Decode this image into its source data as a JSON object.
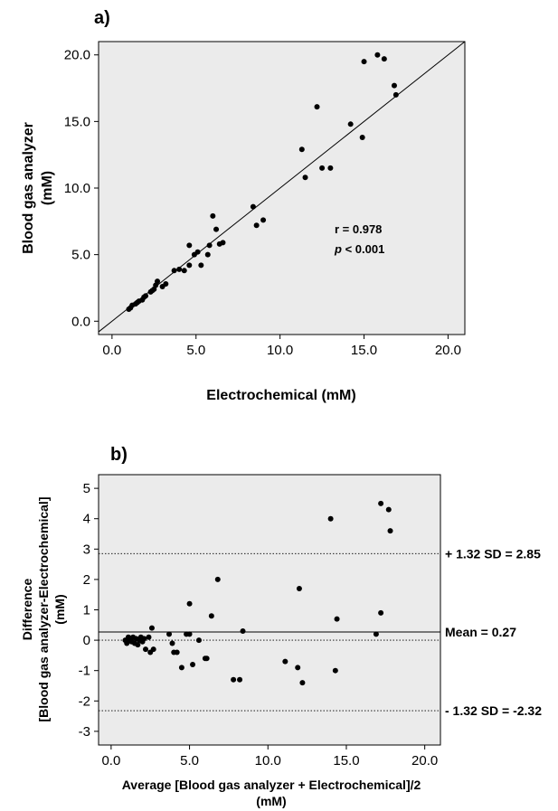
{
  "chart_data": [
    {
      "type": "scatter",
      "panel_label": "a)",
      "xlabel": "Electrochemical (mM)",
      "ylabel_lines": [
        "Blood gas analyzer",
        "(mM)"
      ],
      "xlim": [
        -0.8,
        21.0
      ],
      "ylim": [
        -1.0,
        21.0
      ],
      "xticks": [
        0,
        5,
        10,
        15,
        20
      ],
      "yticks": [
        0,
        5,
        10,
        15,
        20
      ],
      "xtick_labels": [
        "0.0",
        "5.0",
        "10.0",
        "15.0",
        "20.0"
      ],
      "ytick_labels": [
        "0.0",
        "5.0",
        "10.0",
        "15.0",
        "20.0"
      ],
      "identity_line": true,
      "annotations": {
        "r_label": "r = 0.978",
        "p_symbol": "p",
        "p_rest": " < 0.001"
      },
      "background": "#ebebeb",
      "grid": false,
      "points": [
        [
          1.0,
          0.9
        ],
        [
          1.1,
          1.0
        ],
        [
          1.2,
          1.2
        ],
        [
          1.4,
          1.3
        ],
        [
          1.5,
          1.4
        ],
        [
          1.6,
          1.5
        ],
        [
          1.8,
          1.6
        ],
        [
          1.9,
          1.8
        ],
        [
          2.0,
          1.9
        ],
        [
          2.3,
          2.2
        ],
        [
          2.4,
          2.3
        ],
        [
          2.5,
          2.4
        ],
        [
          2.6,
          2.7
        ],
        [
          2.7,
          3.0
        ],
        [
          3.0,
          2.6
        ],
        [
          3.2,
          2.8
        ],
        [
          3.7,
          3.8
        ],
        [
          4.0,
          3.9
        ],
        [
          4.3,
          3.8
        ],
        [
          4.6,
          4.2
        ],
        [
          4.6,
          5.7
        ],
        [
          4.9,
          5.0
        ],
        [
          5.1,
          5.2
        ],
        [
          5.3,
          4.2
        ],
        [
          5.7,
          5.0
        ],
        [
          5.8,
          5.7
        ],
        [
          6.0,
          7.9
        ],
        [
          6.2,
          6.9
        ],
        [
          6.4,
          5.8
        ],
        [
          6.6,
          5.9
        ],
        [
          8.4,
          8.6
        ],
        [
          8.6,
          7.2
        ],
        [
          9.0,
          7.6
        ],
        [
          11.3,
          12.9
        ],
        [
          11.5,
          10.8
        ],
        [
          12.2,
          16.1
        ],
        [
          12.5,
          11.5
        ],
        [
          13.0,
          11.5
        ],
        [
          14.2,
          14.8
        ],
        [
          14.9,
          13.8
        ],
        [
          15.0,
          19.5
        ],
        [
          15.8,
          20.0
        ],
        [
          16.2,
          19.7
        ],
        [
          16.8,
          17.7
        ],
        [
          16.9,
          17.0
        ]
      ]
    },
    {
      "type": "scatter",
      "panel_label": "b)",
      "xlabel_lines": [
        "Average [Blood gas analyzer + Electrochemical]/2",
        "(mM)"
      ],
      "ylabel_lines": [
        "Difference",
        "[Blood gas analyzer-Electrochemical]",
        "(mM)"
      ],
      "xlim": [
        -0.8,
        21.0
      ],
      "ylim": [
        -3.45,
        5.45
      ],
      "xticks": [
        0,
        5,
        10,
        15,
        20
      ],
      "yticks": [
        -3,
        -2,
        -1,
        0,
        1,
        2,
        3,
        4,
        5
      ],
      "xtick_labels": [
        "0.0",
        "5.0",
        "10.0",
        "15.0",
        "20.0"
      ],
      "ytick_labels": [
        "-3",
        "-2",
        "-1",
        "0",
        "1",
        "2",
        "3",
        "4",
        "5"
      ],
      "background": "#ebebeb",
      "grid": false,
      "reference_lines": [
        {
          "y": 2.85,
          "style": "dotted",
          "label": "+ 1.32 SD = 2.85"
        },
        {
          "y": 0.27,
          "style": "solid",
          "label": "Mean = 0.27"
        },
        {
          "y": 0.0,
          "style": "dotted",
          "label": ""
        },
        {
          "y": -2.32,
          "style": "dotted",
          "label": "- 1.32 SD = -2.32"
        }
      ],
      "points": [
        [
          0.9,
          0.0
        ],
        [
          1.0,
          -0.1
        ],
        [
          1.1,
          0.1
        ],
        [
          1.2,
          0.0
        ],
        [
          1.3,
          -0.05
        ],
        [
          1.4,
          0.1
        ],
        [
          1.5,
          -0.1
        ],
        [
          1.6,
          0.05
        ],
        [
          1.7,
          -0.15
        ],
        [
          1.8,
          0.0
        ],
        [
          1.9,
          0.1
        ],
        [
          2.0,
          -0.05
        ],
        [
          2.1,
          0.05
        ],
        [
          2.2,
          -0.3
        ],
        [
          2.4,
          0.1
        ],
        [
          2.5,
          -0.4
        ],
        [
          2.6,
          0.4
        ],
        [
          2.7,
          -0.3
        ],
        [
          3.7,
          0.2
        ],
        [
          3.9,
          -0.1
        ],
        [
          4.0,
          -0.4
        ],
        [
          4.2,
          -0.4
        ],
        [
          4.5,
          -0.9
        ],
        [
          4.8,
          0.2
        ],
        [
          5.0,
          0.2
        ],
        [
          5.0,
          1.2
        ],
        [
          5.2,
          -0.8
        ],
        [
          5.6,
          0.0
        ],
        [
          6.0,
          -0.6
        ],
        [
          6.1,
          -0.6
        ],
        [
          6.4,
          0.8
        ],
        [
          6.8,
          2.0
        ],
        [
          7.8,
          -1.3
        ],
        [
          8.2,
          -1.3
        ],
        [
          8.4,
          0.3
        ],
        [
          11.1,
          -0.7
        ],
        [
          11.9,
          -0.9
        ],
        [
          12.0,
          1.7
        ],
        [
          12.2,
          -1.4
        ],
        [
          14.0,
          4.0
        ],
        [
          14.3,
          -1.0
        ],
        [
          14.4,
          0.7
        ],
        [
          16.9,
          0.2
        ],
        [
          17.2,
          0.9
        ],
        [
          17.2,
          4.5
        ],
        [
          17.7,
          4.3
        ],
        [
          17.8,
          3.6
        ]
      ]
    }
  ]
}
